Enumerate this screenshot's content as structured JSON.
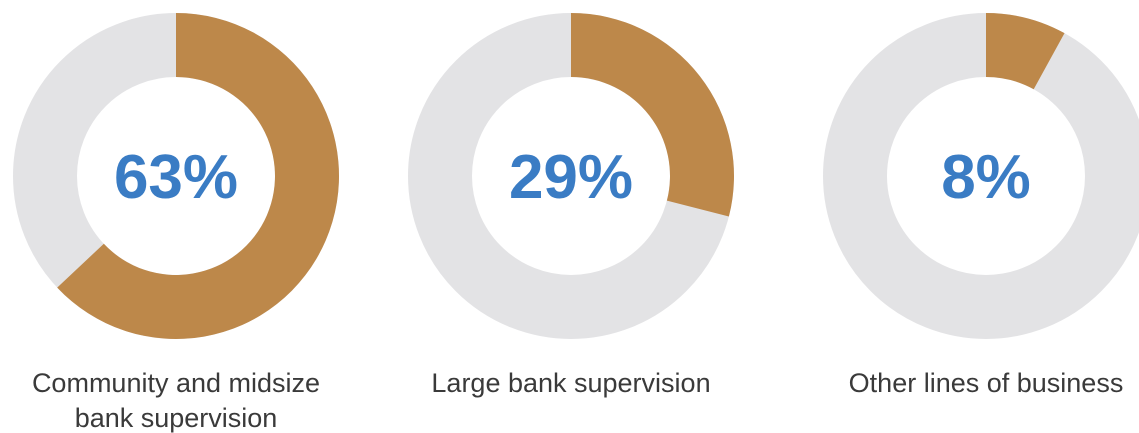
{
  "chart_data": [
    {
      "type": "pie",
      "value": 63,
      "label": "63%",
      "caption": [
        "Community and midsize",
        "bank supervision"
      ]
    },
    {
      "type": "pie",
      "value": 29,
      "label": "29%",
      "caption": [
        "Large bank supervision"
      ]
    },
    {
      "type": "pie",
      "value": 8,
      "label": "8%",
      "caption": [
        "Other lines of business"
      ]
    }
  ],
  "colors": {
    "filled": "#bd884a",
    "track": "#e3e3e5",
    "label": "#3a7cc4",
    "caption": "#3a3a3a"
  }
}
